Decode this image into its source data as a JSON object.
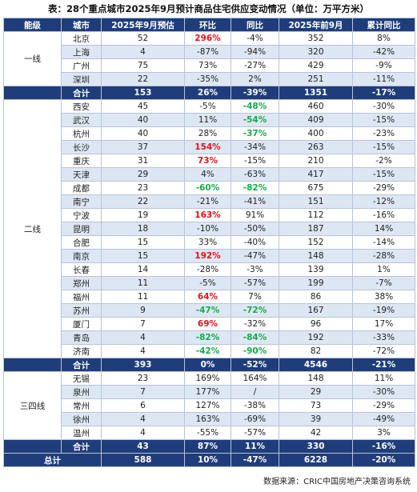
{
  "title": "表：28个重点城市2025年9月预计商品住宅供应变动情况（单位：万平方米）",
  "header": [
    "能级",
    "城市",
    "2025年9月预估",
    "环比",
    "同比",
    "2025年前9月",
    "累计同比"
  ],
  "emphasis_colors": {
    "red": "#e8101a",
    "green": "#1aa84a"
  },
  "groups": [
    {
      "tier": "一线",
      "rows": [
        {
          "cells": [
            "北京",
            52,
            "296%",
            "-4%",
            352,
            "8%"
          ],
          "marks": {
            "2": "red"
          }
        },
        {
          "cells": [
            "上海",
            4,
            "-87%",
            "-94%",
            320,
            "-42%"
          ]
        },
        {
          "cells": [
            "广州",
            75,
            "73%",
            "-27%",
            429,
            "-9%"
          ]
        },
        {
          "cells": [
            "深圳",
            22,
            "-35%",
            "2%",
            251,
            "-11%"
          ]
        }
      ],
      "subtotal": [
        "合计",
        153,
        "26%",
        "-39%",
        1351,
        "-17%"
      ]
    },
    {
      "tier": "二线",
      "rows": [
        {
          "cells": [
            "西安",
            45,
            "-5%",
            "-48%",
            460,
            "-30%"
          ],
          "marks": {
            "3": "green"
          }
        },
        {
          "cells": [
            "武汉",
            40,
            "11%",
            "-54%",
            409,
            "-15%"
          ],
          "marks": {
            "3": "green"
          }
        },
        {
          "cells": [
            "杭州",
            40,
            "28%",
            "-37%",
            400,
            "-23%"
          ],
          "marks": {
            "3": "green"
          }
        },
        {
          "cells": [
            "长沙",
            37,
            "154%",
            "-34%",
            263,
            "-15%"
          ],
          "marks": {
            "2": "red"
          }
        },
        {
          "cells": [
            "重庆",
            31,
            "73%",
            "-15%",
            210,
            "-2%"
          ],
          "marks": {
            "2": "red"
          }
        },
        {
          "cells": [
            "天津",
            29,
            "4%",
            "-63%",
            417,
            "-15%"
          ]
        },
        {
          "cells": [
            "成都",
            23,
            "-60%",
            "-82%",
            675,
            "-29%"
          ],
          "marks": {
            "2": "green",
            "3": "green"
          }
        },
        {
          "cells": [
            "南宁",
            22,
            "-21%",
            "-41%",
            151,
            "-12%"
          ]
        },
        {
          "cells": [
            "宁波",
            19,
            "163%",
            "91%",
            112,
            "-16%"
          ],
          "marks": {
            "2": "red"
          }
        },
        {
          "cells": [
            "昆明",
            18,
            "-10%",
            "-50%",
            187,
            "14%"
          ]
        },
        {
          "cells": [
            "合肥",
            15,
            "33%",
            "-40%",
            152,
            "-14%"
          ]
        },
        {
          "cells": [
            "南京",
            15,
            "192%",
            "-47%",
            148,
            "-28%"
          ],
          "marks": {
            "2": "red"
          }
        },
        {
          "cells": [
            "长春",
            14,
            "-28%",
            "-3%",
            139,
            "1%"
          ]
        },
        {
          "cells": [
            "郑州",
            11,
            "-5%",
            "-57%",
            199,
            "-7%"
          ]
        },
        {
          "cells": [
            "福州",
            11,
            "64%",
            "7%",
            86,
            "38%"
          ],
          "marks": {
            "2": "red"
          }
        },
        {
          "cells": [
            "苏州",
            9,
            "-47%",
            "-72%",
            167,
            "-19%"
          ],
          "marks": {
            "2": "green",
            "3": "green"
          }
        },
        {
          "cells": [
            "厦门",
            7,
            "69%",
            "-32%",
            96,
            "17%"
          ],
          "marks": {
            "2": "red"
          }
        },
        {
          "cells": [
            "青岛",
            4,
            "-82%",
            "-84%",
            192,
            "-33%"
          ],
          "marks": {
            "2": "green",
            "3": "green"
          }
        },
        {
          "cells": [
            "济南",
            4,
            "-42%",
            "-90%",
            82,
            "-72%"
          ],
          "marks": {
            "2": "green",
            "3": "green"
          }
        }
      ],
      "subtotal": [
        "合计",
        393,
        "0%",
        "-52%",
        4546,
        "-21%"
      ]
    },
    {
      "tier": "三四线",
      "rows": [
        {
          "cells": [
            "无锡",
            23,
            "169%",
            "164%",
            148,
            "11%"
          ]
        },
        {
          "cells": [
            "泉州",
            7,
            "177%",
            "/",
            29,
            "-30%"
          ]
        },
        {
          "cells": [
            "常州",
            6,
            "127%",
            "-38%",
            73,
            "-29%"
          ]
        },
        {
          "cells": [
            "徐州",
            4,
            "163%",
            "-69%",
            39,
            "-49%"
          ]
        },
        {
          "cells": [
            "温州",
            4,
            "-55%",
            "-57%",
            42,
            "3%"
          ]
        }
      ],
      "subtotal": [
        "合计",
        43,
        "87%",
        "11%",
        330,
        "-16%"
      ]
    }
  ],
  "total": [
    "总计",
    588,
    "10%",
    "-47%",
    6228,
    "-20%"
  ],
  "source": "数据来源：CRIC中国房地产决策咨询系统"
}
